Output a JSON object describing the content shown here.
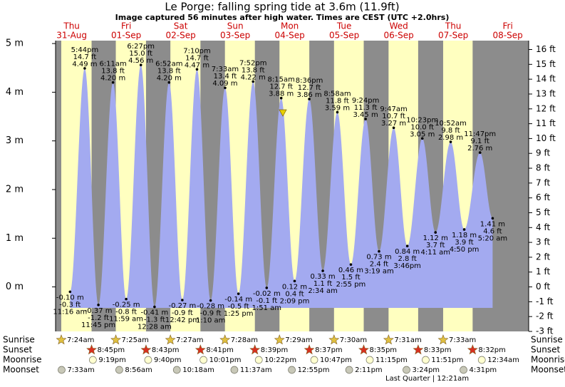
{
  "chart_data": {
    "type": "tide",
    "title": "Le Porge: falling  spring tide at 3.6m (11.9ft)",
    "subtitle": "Image captured 56 minutes after high water. Times are CEST (UTC +2.0hrs)",
    "color": "#a3aaf0",
    "day_color": "#ffffc0",
    "night_color": "#8c8c8c",
    "label_color": "#cc0000",
    "ylim": [
      -0.9144,
      5.06
    ],
    "yticks": [
      {
        "value": 0,
        "label": "0 m"
      },
      {
        "value": 1,
        "label": "1 m"
      },
      {
        "value": 2,
        "label": "2 m"
      },
      {
        "value": 3,
        "label": "3 m"
      },
      {
        "value": 4,
        "label": "4 m"
      },
      {
        "value": 5,
        "label": "5 m"
      }
    ],
    "y2lim": [
      -3,
      16.6
    ],
    "y2ticks": [
      {
        "value": -3,
        "label": "-3 ft"
      },
      {
        "value": -2,
        "label": "-2 ft"
      },
      {
        "value": -1,
        "label": "-1 ft"
      },
      {
        "value": 0,
        "label": "0 ft"
      },
      {
        "value": 1,
        "label": "1 ft"
      },
      {
        "value": 2,
        "label": "2 ft"
      },
      {
        "value": 3,
        "label": "3 ft"
      },
      {
        "value": 4,
        "label": "4 ft"
      },
      {
        "value": 5,
        "label": "5 ft"
      },
      {
        "value": 6,
        "label": "6 ft"
      },
      {
        "value": 7,
        "label": "7 ft"
      },
      {
        "value": 8,
        "label": "8 ft"
      },
      {
        "value": 9,
        "label": "9 ft"
      },
      {
        "value": 10,
        "label": "10 ft"
      },
      {
        "value": 11,
        "label": "11 ft"
      },
      {
        "value": 12,
        "label": "12 ft"
      },
      {
        "value": 13,
        "label": "13 ft"
      },
      {
        "value": 14,
        "label": "14 ft"
      },
      {
        "value": 15,
        "label": "15 ft"
      },
      {
        "value": 16,
        "label": "16 ft"
      }
    ],
    "row_labels": [
      "Sunrise",
      "Sunset",
      "Moonrise",
      "Moonset"
    ],
    "moon_phase": "Last Quarter | 12:21am",
    "days": [
      {
        "weekday": "Thu",
        "date": "31-Aug",
        "sunrise": "7:24am",
        "sunset": "8:45pm",
        "moonrise": "9:19pm",
        "moonset": "7:33am",
        "tides": [
          {
            "time": "11:16 am",
            "m": -0.1,
            "m_label": "-0.10 m",
            "ft": -0.3,
            "ft_label": "-0.3 ft"
          },
          {
            "time": "5:44pm",
            "m": 4.49,
            "m_label": "4.49 m",
            "ft": 14.7,
            "ft_label": "14.7 ft"
          },
          {
            "time": "11:45 pm",
            "m": -0.37,
            "m_label": "-0.37 m",
            "ft": -1.2,
            "ft_label": "-1.2 ft"
          }
        ]
      },
      {
        "weekday": "Fri",
        "date": "01-Sep",
        "sunrise": "7:25am",
        "sunset": "8:43pm",
        "moonrise": "9:40pm",
        "moonset": "8:56am",
        "tides": [
          {
            "time": "6:11am",
            "m": 4.2,
            "m_label": "4.20 m",
            "ft": 13.8,
            "ft_label": "13.8 ft"
          },
          {
            "time": "11:59 am",
            "m": -0.25,
            "m_label": "-0.25 m",
            "ft": -0.8,
            "ft_label": "-0.8 ft"
          },
          {
            "time": "6:27pm",
            "m": 4.56,
            "m_label": "4.56 m",
            "ft": 15.0,
            "ft_label": "15.0 ft"
          }
        ]
      },
      {
        "weekday": "Sat",
        "date": "02-Sep",
        "sunrise": "7:27am",
        "sunset": "8:41pm",
        "moonrise": "10:01pm",
        "moonset": "10:18am",
        "tides": [
          {
            "time": "12:28 am",
            "m": -0.41,
            "m_label": "-0.41 m",
            "ft": -1.3,
            "ft_label": "-1.3 ft"
          },
          {
            "time": "6:52am",
            "m": 4.2,
            "m_label": "4.20 m",
            "ft": 13.8,
            "ft_label": "13.8 ft"
          },
          {
            "time": "12:42 pm",
            "m": -0.27,
            "m_label": "-0.27 m",
            "ft": -0.9,
            "ft_label": "-0.9 ft"
          },
          {
            "time": "7:10pm",
            "m": 4.47,
            "m_label": "4.47 m",
            "ft": 14.7,
            "ft_label": "14.7 ft"
          }
        ]
      },
      {
        "weekday": "Sun",
        "date": "03-Sep",
        "sunrise": "7:28am",
        "sunset": "8:39pm",
        "moonrise": "10:22pm",
        "moonset": "11:37am",
        "tides": [
          {
            "time": "1:10 am",
            "m": -0.28,
            "m_label": "-0.28 m",
            "ft": -0.9,
            "ft_label": "-0.9 ft"
          },
          {
            "time": "7:33am",
            "m": 4.09,
            "m_label": "4.09 m",
            "ft": 13.4,
            "ft_label": "13.4 ft"
          },
          {
            "time": "1:25 pm",
            "m": -0.14,
            "m_label": "-0.14 m",
            "ft": -0.5,
            "ft_label": "-0.5 ft"
          },
          {
            "time": "7:52pm",
            "m": 4.22,
            "m_label": "4.22 m",
            "ft": 13.8,
            "ft_label": "13.8 ft"
          }
        ]
      },
      {
        "weekday": "Mon",
        "date": "04-Sep",
        "sunrise": "7:29am",
        "sunset": "8:37pm",
        "moonrise": "10:47pm",
        "moonset": "12:55pm",
        "tides": [
          {
            "time": "1:51 am",
            "m": -0.02,
            "m_label": "-0.02 m",
            "ft": -0.1,
            "ft_label": "-0.1 ft"
          },
          {
            "time": "8:15am",
            "m": 3.88,
            "m_label": "3.88 m",
            "ft": 12.7,
            "ft_label": "12.7 ft"
          },
          {
            "time": "2:09 pm",
            "m": 0.12,
            "m_label": "0.12 m",
            "ft": 0.4,
            "ft_label": "0.4 ft"
          },
          {
            "time": "8:36pm",
            "m": 3.86,
            "m_label": "3.86 m",
            "ft": 12.7,
            "ft_label": "12.7 ft"
          }
        ]
      },
      {
        "weekday": "Tue",
        "date": "05-Sep",
        "sunrise": "7:30am",
        "sunset": "8:35pm",
        "moonrise": "11:15pm",
        "moonset": "2:11pm",
        "tides": [
          {
            "time": "2:34 am",
            "m": 0.33,
            "m_label": "0.33 m",
            "ft": 1.1,
            "ft_label": "1.1 ft"
          },
          {
            "time": "8:58am",
            "m": 3.59,
            "m_label": "3.59 m",
            "ft": 11.8,
            "ft_label": "11.8 ft"
          },
          {
            "time": "2:55 pm",
            "m": 0.46,
            "m_label": "0.46 m",
            "ft": 1.5,
            "ft_label": "1.5 ft"
          },
          {
            "time": "9:24pm",
            "m": 3.45,
            "m_label": "3.45 m",
            "ft": 11.3,
            "ft_label": "11.3 ft"
          }
        ]
      },
      {
        "weekday": "Wed",
        "date": "06-Sep",
        "sunrise": "7:31am",
        "sunset": "8:33pm",
        "moonrise": "11:51pm",
        "moonset": "3:24pm",
        "tides": [
          {
            "time": "3:19 am",
            "m": 0.73,
            "m_label": "0.73 m",
            "ft": 2.4,
            "ft_label": "2.4 ft"
          },
          {
            "time": "9:47am",
            "m": 3.27,
            "m_label": "3.27 m",
            "ft": 10.7,
            "ft_label": "10.7 ft"
          },
          {
            "time": "3:46pm",
            "m": 0.84,
            "m_label": "0.84 m",
            "ft": 2.8,
            "ft_label": "2.8 ft"
          },
          {
            "time": "10:23pm",
            "m": 3.05,
            "m_label": "3.05 m",
            "ft": 10.0,
            "ft_label": "10.0 ft"
          }
        ]
      },
      {
        "weekday": "Thu",
        "date": "07-Sep",
        "sunrise": "7:33am",
        "sunset": "8:32pm",
        "moonrise": null,
        "moonset": "4:31pm",
        "tides": [
          {
            "time": "4:11 am",
            "m": 1.12,
            "m_label": "1.12 m",
            "ft": 3.7,
            "ft_label": "3.7 ft"
          },
          {
            "time": "10:52am",
            "m": 2.98,
            "m_label": "2.98 m",
            "ft": 9.8,
            "ft_label": "9.8 ft"
          },
          {
            "time": "4:50 pm",
            "m": 1.18,
            "m_label": "1.18 m",
            "ft": 3.9,
            "ft_label": "3.9 ft"
          },
          {
            "time": "11:47pm",
            "m": 2.76,
            "m_label": "2.76 m",
            "ft": 9.1,
            "ft_label": "9.1 ft"
          }
        ]
      },
      {
        "weekday": "Fri",
        "date": "08-Sep",
        "sunrise": null,
        "sunset": null,
        "moonrise": "12:34am",
        "moonset": null,
        "tides": [
          {
            "time": "5:20 am",
            "m": 1.41,
            "m_label": "1.41 m",
            "ft": 4.6,
            "ft_label": "4.6 ft"
          }
        ]
      }
    ]
  }
}
